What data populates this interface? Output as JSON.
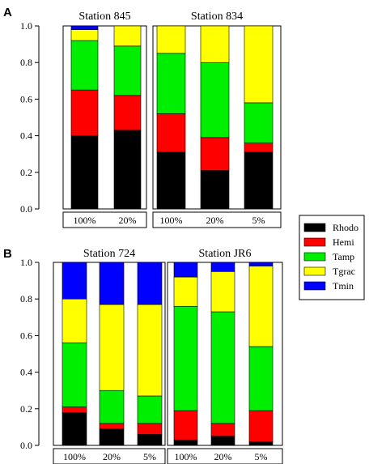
{
  "chart_data": [
    {
      "type": "bar",
      "panel": "A",
      "stacked": true,
      "ylim": [
        0,
        1.0
      ],
      "yticks": [
        "0.0",
        "0.2",
        "0.4",
        "0.6",
        "0.8",
        "1.0"
      ],
      "series_names": [
        "Rhodo",
        "Hemi",
        "Tamp",
        "Tgrac",
        "Tmin"
      ],
      "groups": [
        {
          "title": "Station 845",
          "categories": [
            "100%",
            "20%"
          ],
          "series": [
            {
              "name": "Rhodo",
              "values": [
                0.4,
                0.43
              ]
            },
            {
              "name": "Hemi",
              "values": [
                0.25,
                0.19
              ]
            },
            {
              "name": "Tamp",
              "values": [
                0.27,
                0.27
              ]
            },
            {
              "name": "Tgrac",
              "values": [
                0.06,
                0.11
              ]
            },
            {
              "name": "Tmin",
              "values": [
                0.02,
                0.0
              ]
            }
          ]
        },
        {
          "title": "Station 834",
          "categories": [
            "100%",
            "20%",
            "5%"
          ],
          "series": [
            {
              "name": "Rhodo",
              "values": [
                0.31,
                0.21,
                0.31
              ]
            },
            {
              "name": "Hemi",
              "values": [
                0.21,
                0.18,
                0.05
              ]
            },
            {
              "name": "Tamp",
              "values": [
                0.33,
                0.41,
                0.22
              ]
            },
            {
              "name": "Tgrac",
              "values": [
                0.15,
                0.2,
                0.42
              ]
            },
            {
              "name": "Tmin",
              "values": [
                0.0,
                0.0,
                0.0
              ]
            }
          ]
        }
      ]
    },
    {
      "type": "bar",
      "panel": "B",
      "stacked": true,
      "ylim": [
        0,
        1.0
      ],
      "yticks": [
        "0.0",
        "0.2",
        "0.4",
        "0.6",
        "0.8",
        "1.0"
      ],
      "series_names": [
        "Rhodo",
        "Hemi",
        "Tamp",
        "Tgrac",
        "Tmin"
      ],
      "groups": [
        {
          "title": "Station 724",
          "categories": [
            "100%",
            "20%",
            "5%"
          ],
          "series": [
            {
              "name": "Rhodo",
              "values": [
                0.18,
                0.09,
                0.06
              ]
            },
            {
              "name": "Hemi",
              "values": [
                0.03,
                0.03,
                0.06
              ]
            },
            {
              "name": "Tamp",
              "values": [
                0.35,
                0.18,
                0.15
              ]
            },
            {
              "name": "Tgrac",
              "values": [
                0.24,
                0.47,
                0.5
              ]
            },
            {
              "name": "Tmin",
              "values": [
                0.2,
                0.23,
                0.23
              ]
            }
          ]
        },
        {
          "title": "Station JR6",
          "categories": [
            "100%",
            "20%",
            "5%"
          ],
          "series": [
            {
              "name": "Rhodo",
              "values": [
                0.03,
                0.05,
                0.02
              ]
            },
            {
              "name": "Hemi",
              "values": [
                0.16,
                0.07,
                0.17
              ]
            },
            {
              "name": "Tamp",
              "values": [
                0.57,
                0.61,
                0.35
              ]
            },
            {
              "name": "Tgrac",
              "values": [
                0.16,
                0.22,
                0.44
              ]
            },
            {
              "name": "Tmin",
              "values": [
                0.08,
                0.05,
                0.02
              ]
            }
          ]
        }
      ]
    }
  ],
  "legend": {
    "entries": [
      {
        "name": "Rhodo",
        "color": "#000000"
      },
      {
        "name": "Hemi",
        "color": "#ff0000"
      },
      {
        "name": "Tamp",
        "color": "#00ee00"
      },
      {
        "name": "Tgrac",
        "color": "#ffff00"
      },
      {
        "name": "Tmin",
        "color": "#0000ff"
      }
    ]
  },
  "colors": {
    "Rhodo": "#000000",
    "Hemi": "#ff0000",
    "Tamp": "#00ee00",
    "Tgrac": "#ffff00",
    "Tmin": "#0000ff"
  }
}
